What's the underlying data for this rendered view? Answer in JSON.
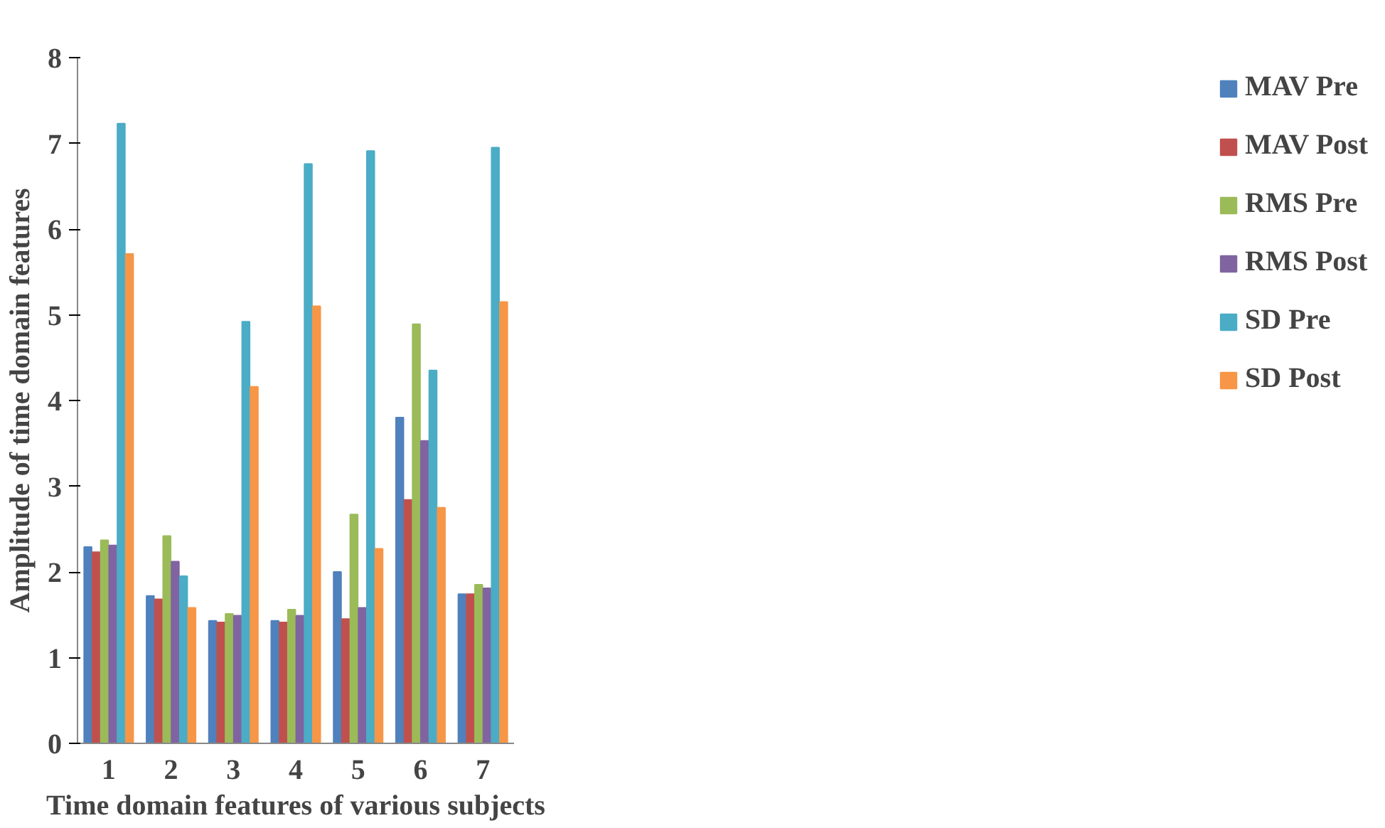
{
  "chart_data": {
    "type": "bar",
    "xlabel": "Time domain features of various subjects",
    "ylabel": "Amplitude of time domain features",
    "categories": [
      "1",
      "2",
      "3",
      "4",
      "5",
      "6",
      "7"
    ],
    "series": [
      {
        "name": "MAV Pre",
        "color": "#4f81bd",
        "values": [
          2.29,
          1.72,
          1.43,
          1.43,
          2.0,
          3.8,
          1.74
        ]
      },
      {
        "name": "MAV Post",
        "color": "#c0504d",
        "values": [
          2.23,
          1.68,
          1.41,
          1.41,
          1.45,
          2.84,
          1.74
        ]
      },
      {
        "name": "RMS Pre",
        "color": "#9bbb59",
        "values": [
          2.37,
          2.42,
          1.51,
          1.56,
          2.67,
          4.89,
          1.85
        ]
      },
      {
        "name": "RMS Post",
        "color": "#8064a2",
        "values": [
          2.31,
          2.12,
          1.49,
          1.49,
          1.58,
          3.53,
          1.81
        ]
      },
      {
        "name": "SD Pre",
        "color": "#4bacc6",
        "values": [
          7.23,
          1.95,
          4.92,
          6.76,
          6.91,
          4.35,
          6.95
        ]
      },
      {
        "name": "SD Post",
        "color": "#f79646",
        "values": [
          5.71,
          1.58,
          4.16,
          5.1,
          2.27,
          2.75,
          5.15
        ]
      }
    ],
    "ylim": [
      0,
      8
    ],
    "yticks": [
      0,
      1,
      2,
      3,
      4,
      5,
      6,
      7,
      8
    ],
    "grid": false,
    "legend": "right"
  }
}
